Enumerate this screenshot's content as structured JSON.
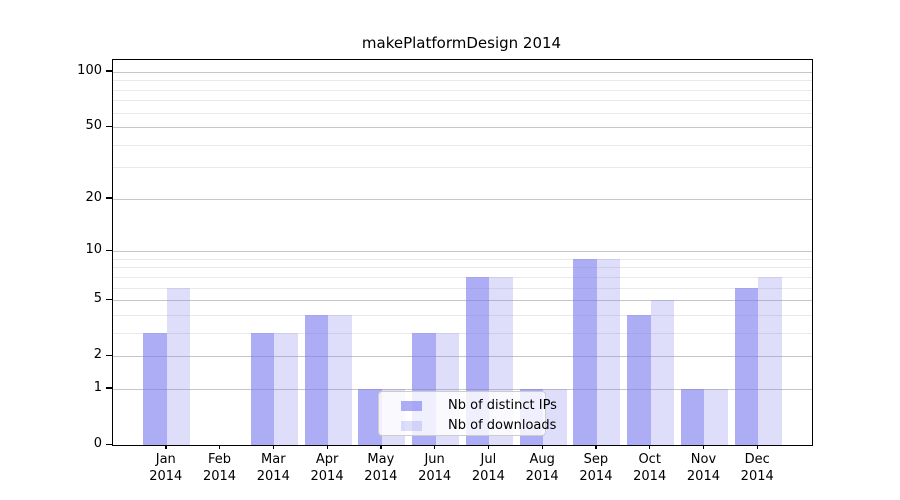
{
  "chart_data": {
    "type": "bar",
    "title": "makePlatformDesign 2014",
    "categories": [
      {
        "month": "Jan",
        "year": "2014"
      },
      {
        "month": "Feb",
        "year": "2014"
      },
      {
        "month": "Mar",
        "year": "2014"
      },
      {
        "month": "Apr",
        "year": "2014"
      },
      {
        "month": "May",
        "year": "2014"
      },
      {
        "month": "Jun",
        "year": "2014"
      },
      {
        "month": "Jul",
        "year": "2014"
      },
      {
        "month": "Aug",
        "year": "2014"
      },
      {
        "month": "Sep",
        "year": "2014"
      },
      {
        "month": "Oct",
        "year": "2014"
      },
      {
        "month": "Nov",
        "year": "2014"
      },
      {
        "month": "Dec",
        "year": "2014"
      }
    ],
    "series": [
      {
        "name": "Nb of distinct IPs",
        "values": [
          3,
          0,
          3,
          4,
          1,
          3,
          7,
          1,
          9,
          4,
          1,
          6
        ],
        "color": "#7a7af0",
        "alpha": 0.62
      },
      {
        "name": "Nb of downloads",
        "values": [
          6,
          0,
          3,
          4,
          1,
          3,
          7,
          1,
          9,
          5,
          1,
          7
        ],
        "color": "#7a7af0",
        "alpha": 0.25
      }
    ],
    "yscale": "log10(1+v)",
    "ylim": [
      0,
      116
    ],
    "y_ticks": [
      0,
      1,
      2,
      5,
      10,
      20,
      50,
      100
    ],
    "y_minor_grid": [
      3,
      4,
      6,
      7,
      8,
      9,
      30,
      40,
      60,
      70,
      80,
      90
    ],
    "grid": "on",
    "legend_position": "lower center",
    "colors": {
      "major_grid": "#c6c6c6",
      "minor_grid": "#e9e9e9",
      "axis": "#000000",
      "background": "#ffffff"
    }
  }
}
